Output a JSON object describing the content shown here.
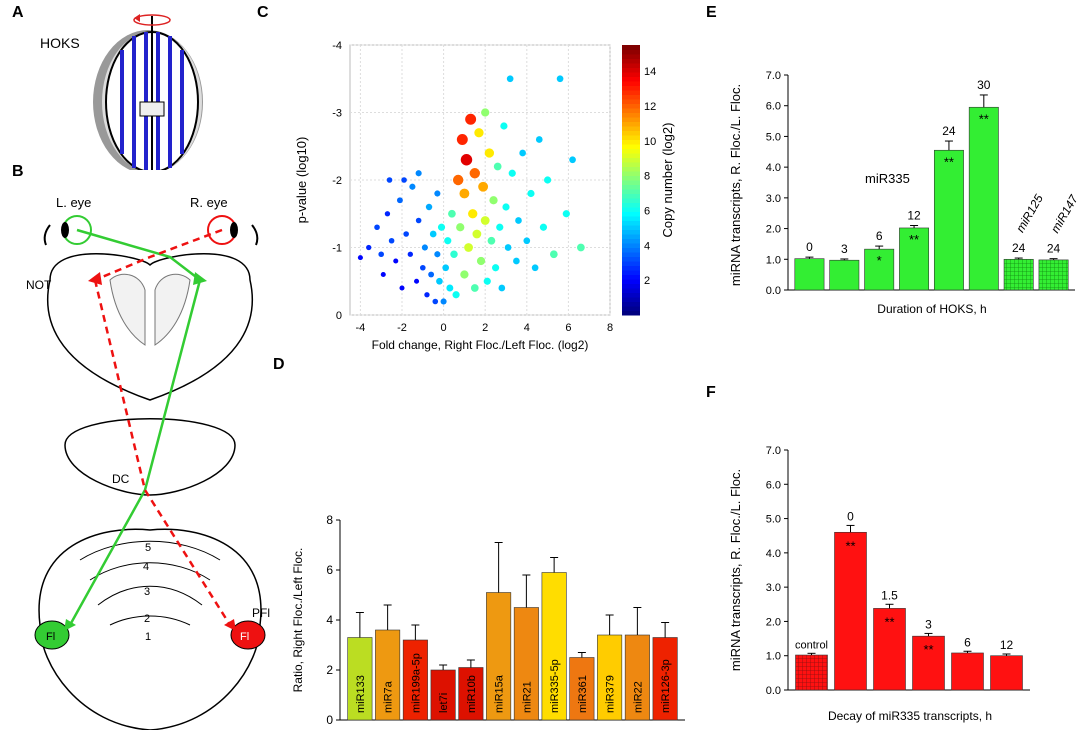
{
  "panel_labels": {
    "a": "A",
    "b": "B",
    "c": "C",
    "d": "D",
    "e": "E",
    "f": "F"
  },
  "panel_a": {
    "label": "HOKS"
  },
  "panel_b": {
    "l_eye": "L. eye",
    "r_eye": "R. eye",
    "not": "NOT",
    "dc": "DC",
    "pfl": "PFl",
    "fl_left": "Fl",
    "fl_right": "Fl",
    "lobules": [
      "5",
      "4",
      "3",
      "2",
      "1"
    ],
    "colors": {
      "green": "#33cc33",
      "red": "#ee1111"
    }
  },
  "chart_data": [
    {
      "id": "C",
      "type": "scatter",
      "xlabel": "Fold change, Right Floc./Left Floc. (log2)",
      "ylabel": "p-value (log10)",
      "xlim": [
        -4.5,
        8
      ],
      "ylim": [
        0,
        -4
      ],
      "x_ticks": [
        "-4",
        "-2",
        "0",
        "2",
        "4",
        "6",
        "8"
      ],
      "y_ticks": [
        "0",
        "-1",
        "-2",
        "-3",
        "-4"
      ],
      "colorbar": {
        "label": "Copy number (log2)",
        "ticks": [
          "2",
          "4",
          "6",
          "8",
          "10",
          "12",
          "14"
        ],
        "range": [
          0,
          15.5
        ]
      },
      "points": [
        [
          -4.0,
          -0.85,
          2
        ],
        [
          -3.6,
          -1.0,
          2.5
        ],
        [
          -3.2,
          -1.3,
          3
        ],
        [
          -2.9,
          -0.6,
          2
        ],
        [
          -2.7,
          -1.5,
          2.5
        ],
        [
          -2.5,
          -1.1,
          3
        ],
        [
          -2.3,
          -0.8,
          2
        ],
        [
          -2.1,
          -1.7,
          3.5
        ],
        [
          -2.0,
          -0.4,
          2
        ],
        [
          -1.8,
          -1.2,
          3
        ],
        [
          -1.6,
          -0.9,
          2.5
        ],
        [
          -1.5,
          -1.9,
          4
        ],
        [
          -1.3,
          -0.5,
          2
        ],
        [
          -1.2,
          -1.4,
          3
        ],
        [
          -1.0,
          -0.7,
          3
        ],
        [
          -0.9,
          -1.0,
          4
        ],
        [
          -0.8,
          -0.3,
          2.5
        ],
        [
          -0.7,
          -1.6,
          4.5
        ],
        [
          -0.6,
          -0.6,
          3.5
        ],
        [
          -0.5,
          -1.2,
          5
        ],
        [
          -0.4,
          -0.2,
          3
        ],
        [
          -0.3,
          -0.9,
          4
        ],
        [
          -0.2,
          -0.5,
          5
        ],
        [
          -0.1,
          -1.3,
          6
        ],
        [
          0.0,
          -0.2,
          4
        ],
        [
          0.1,
          -0.7,
          5
        ],
        [
          0.2,
          -1.1,
          6
        ],
        [
          0.3,
          -0.4,
          5.5
        ],
        [
          0.4,
          -1.5,
          7
        ],
        [
          0.5,
          -0.9,
          6.5
        ],
        [
          0.6,
          -0.3,
          6
        ],
        [
          0.7,
          -2.0,
          12
        ],
        [
          0.8,
          -1.3,
          8
        ],
        [
          0.9,
          -2.6,
          13
        ],
        [
          1.0,
          -0.6,
          8
        ],
        [
          1.0,
          -1.8,
          11
        ],
        [
          1.1,
          -2.3,
          14
        ],
        [
          1.2,
          -1.0,
          9
        ],
        [
          1.3,
          -2.9,
          13
        ],
        [
          1.4,
          -1.5,
          10
        ],
        [
          1.5,
          -0.4,
          7
        ],
        [
          1.5,
          -2.1,
          12
        ],
        [
          1.6,
          -1.2,
          9
        ],
        [
          1.7,
          -2.7,
          10
        ],
        [
          1.8,
          -0.8,
          8
        ],
        [
          1.9,
          -1.9,
          11
        ],
        [
          2.0,
          -1.4,
          9
        ],
        [
          2.0,
          -3.0,
          8
        ],
        [
          2.1,
          -0.5,
          6
        ],
        [
          2.2,
          -2.4,
          10
        ],
        [
          2.3,
          -1.1,
          7
        ],
        [
          2.4,
          -1.7,
          8
        ],
        [
          2.5,
          -0.7,
          6
        ],
        [
          2.6,
          -2.2,
          7
        ],
        [
          2.7,
          -1.3,
          6
        ],
        [
          2.8,
          -0.4,
          5
        ],
        [
          2.9,
          -2.8,
          6
        ],
        [
          3.0,
          -1.6,
          6
        ],
        [
          3.1,
          -1.0,
          5
        ],
        [
          3.2,
          -3.5,
          5
        ],
        [
          3.3,
          -2.1,
          6
        ],
        [
          3.5,
          -0.8,
          5
        ],
        [
          3.6,
          -1.4,
          5
        ],
        [
          3.8,
          -2.4,
          5
        ],
        [
          4.0,
          -1.1,
          5
        ],
        [
          4.2,
          -1.8,
          6
        ],
        [
          4.4,
          -0.7,
          5
        ],
        [
          4.6,
          -2.6,
          5
        ],
        [
          4.8,
          -1.3,
          6
        ],
        [
          5.0,
          -2.0,
          6
        ],
        [
          5.3,
          -0.9,
          7
        ],
        [
          5.6,
          -3.5,
          5
        ],
        [
          5.9,
          -1.5,
          6
        ],
        [
          6.2,
          -2.3,
          5
        ],
        [
          6.6,
          -1.0,
          7
        ],
        [
          -1.9,
          -2.0,
          3
        ],
        [
          -2.6,
          -2.0,
          3
        ],
        [
          -1.2,
          -2.1,
          4
        ],
        [
          -3.0,
          -0.9,
          3
        ],
        [
          -0.3,
          -1.8,
          4
        ]
      ]
    },
    {
      "id": "D",
      "type": "bar",
      "ylabel": "Ratio, Right Floc./Left Floc.",
      "ylim": [
        0,
        8
      ],
      "y_ticks": [
        "0",
        "2",
        "4",
        "6",
        "8"
      ],
      "categories": [
        "miR133",
        "miR7a",
        "miR199a-5p",
        "let7i",
        "miR10b",
        "miR15a",
        "miR21",
        "miR335-5p",
        "miR361",
        "miR379",
        "miR22",
        "miR126-3p"
      ],
      "values": [
        3.3,
        3.6,
        3.2,
        2.0,
        2.1,
        5.1,
        4.5,
        5.9,
        2.5,
        3.4,
        3.4,
        3.3
      ],
      "errors": [
        1.0,
        1.0,
        0.6,
        0.2,
        0.3,
        2.0,
        1.3,
        0.6,
        0.2,
        0.8,
        1.1,
        0.6
      ],
      "colors": [
        "#bbdd22",
        "#ee9911",
        "#ee2200",
        "#dd1100",
        "#dd1100",
        "#ee9911",
        "#ee8811",
        "#ffdd00",
        "#ee7711",
        "#ffcc00",
        "#ee8811",
        "#ee2200"
      ]
    },
    {
      "id": "E",
      "type": "bar",
      "ylabel": "miRNA transcripts, R. Floc./L. Floc.",
      "xlabel": "Duration of HOKS,  h",
      "ylim": [
        0,
        7
      ],
      "y_ticks": [
        "0.0",
        "1.0",
        "2.0",
        "3.0",
        "4.0",
        "5.0",
        "6.0",
        "7.0"
      ],
      "annotation": "miR335",
      "categories": [
        "0",
        "3",
        "6",
        "12",
        "24",
        "30",
        "24",
        "24"
      ],
      "values": [
        1.02,
        0.97,
        1.33,
        2.02,
        4.55,
        5.95,
        1.0,
        0.98
      ],
      "errors": [
        0.05,
        0.04,
        0.1,
        0.08,
        0.3,
        0.4,
        0.04,
        0.04
      ],
      "sig": [
        "",
        "",
        "*",
        "**",
        "**",
        "**",
        "",
        ""
      ],
      "side_labels": [
        "miR125",
        "miR147"
      ],
      "color": "#33ee33"
    },
    {
      "id": "F",
      "type": "bar",
      "ylabel": "miRNA transcripts, R. Floc./L. Floc.",
      "xlabel": "Decay of miR335 transcripts,  h",
      "ylim": [
        0,
        7
      ],
      "y_ticks": [
        "0.0",
        "1.0",
        "2.0",
        "3.0",
        "4.0",
        "5.0",
        "6.0",
        "7.0"
      ],
      "categories": [
        "control",
        "0",
        "1.5",
        "3",
        "6",
        "12"
      ],
      "values": [
        1.02,
        4.6,
        2.38,
        1.57,
        1.08,
        1.0
      ],
      "errors": [
        0.05,
        0.2,
        0.12,
        0.08,
        0.05,
        0.05
      ],
      "sig": [
        "",
        "**",
        "**",
        "**",
        "",
        ""
      ],
      "color": "#ff1111"
    }
  ]
}
